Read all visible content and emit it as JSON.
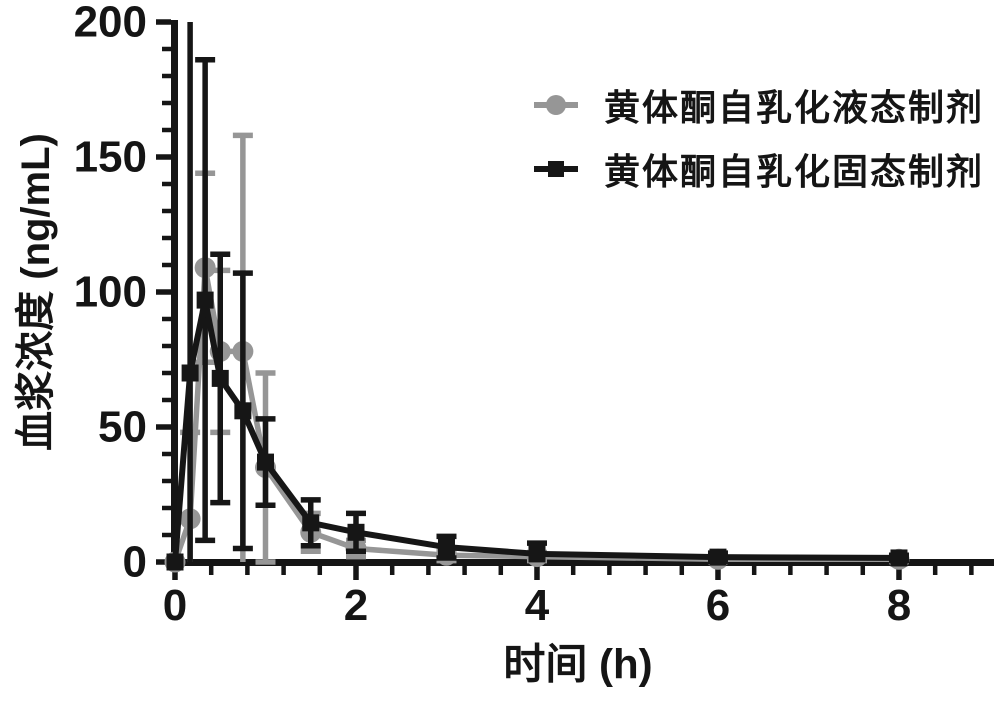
{
  "figure": {
    "background": "#ffffff",
    "axis_color": "#151515"
  },
  "chart_data": {
    "type": "line",
    "title": "",
    "xlabel": "时间 (h)",
    "ylabel": "血浆浓度 (ng/mL)",
    "xlim": [
      0,
      9.05
    ],
    "ylim": [
      0,
      200
    ],
    "x_major_ticks": [
      0,
      2,
      4,
      6,
      8
    ],
    "x_minor_step": 0.4,
    "y_major_ticks": [
      0,
      50,
      100,
      150,
      200
    ],
    "y_minor_step": 10,
    "grid": false,
    "legend_position": "upper-right",
    "error_bars": "sd, symmetric, clipped to axis range",
    "x": [
      0,
      0.167,
      0.333,
      0.5,
      0.75,
      1,
      1.5,
      2,
      3,
      4,
      6,
      8
    ],
    "series": [
      {
        "name": "黄体酮自乳化液态制剂",
        "marker": "circle",
        "color": "#969696",
        "values": [
          0,
          16,
          109,
          78,
          78,
          35,
          11,
          5,
          2.5,
          2,
          1,
          1
        ],
        "errors": [
          0,
          32,
          35,
          30,
          80,
          35,
          7,
          3,
          2,
          1.5,
          0.8,
          0.8
        ]
      },
      {
        "name": "黄体酮自乳化固态制剂",
        "marker": "square",
        "color": "#161616",
        "values": [
          0,
          70,
          97,
          68,
          56,
          37,
          14.5,
          11,
          5.5,
          3,
          1.8,
          1.5
        ],
        "errors": [
          0,
          135,
          89,
          46,
          51,
          16,
          8.5,
          7,
          4,
          4,
          1.5,
          1
        ]
      }
    ]
  }
}
